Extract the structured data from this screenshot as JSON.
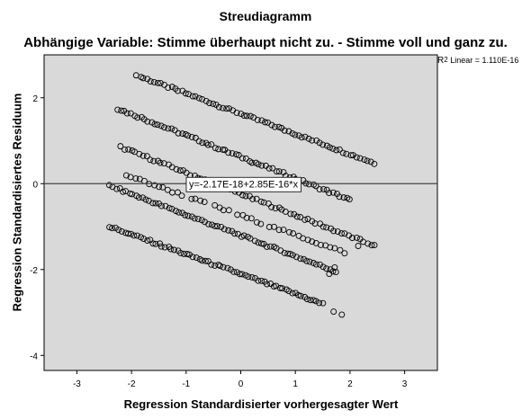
{
  "header": {
    "title": "Streudiagramm",
    "subtitle": "Abhängige Variable: Stimme überhaupt nicht zu. - Stimme voll und ganz zu."
  },
  "r2_legend": {
    "label": "R",
    "sup": "2",
    "rest": " Linear = 1.110E-16"
  },
  "fit_line": {
    "equation": "y=-2.17E-18+2.85E-16*x",
    "intercept": -2.17e-18,
    "slope": 2.85e-16
  },
  "chart_data": {
    "type": "scatter",
    "title": "Streudiagramm",
    "subtitle": "Abhängige Variable: Stimme überhaupt nicht zu. - Stimme voll und ganz zu.",
    "xlabel": "Regression Standardisierter vorhergesagter Wert",
    "ylabel": "Regression Standardisiertes Residuum",
    "xlim": [
      -3.6,
      3.6
    ],
    "ylim": [
      -4.35,
      3.0
    ],
    "xticks": [
      -3,
      -2,
      -1,
      0,
      1,
      2,
      3
    ],
    "yticks": [
      -4,
      -2,
      0,
      2
    ],
    "grid": false,
    "background": "#d9d9d9",
    "marker_color": "#000000",
    "bands": [
      {
        "x_start": -1.9,
        "y_start": 2.52,
        "x_end": 2.45,
        "y_end": 0.48
      },
      {
        "x_start": -2.25,
        "y_start": 1.75,
        "x_end": 2.0,
        "y_end": -0.38
      },
      {
        "x_start": -2.2,
        "y_start": 0.85,
        "x_end": 2.45,
        "y_end": -1.45
      },
      {
        "x_start": -2.4,
        "y_start": -0.05,
        "x_end": 1.75,
        "y_end": -2.05
      },
      {
        "x_start": -2.4,
        "y_start": -1.0,
        "x_end": 1.5,
        "y_end": -2.8
      },
      {
        "x_start": -2.1,
        "y_start": 0.2,
        "x_end": 1.9,
        "y_end": -1.6
      }
    ],
    "extra_points": [
      {
        "x": 1.7,
        "y": -2.98
      },
      {
        "x": 1.85,
        "y": -3.05
      },
      {
        "x": 2.15,
        "y": -1.45
      },
      {
        "x": 1.72,
        "y": -1.95
      },
      {
        "x": 1.62,
        "y": -2.1
      }
    ]
  }
}
